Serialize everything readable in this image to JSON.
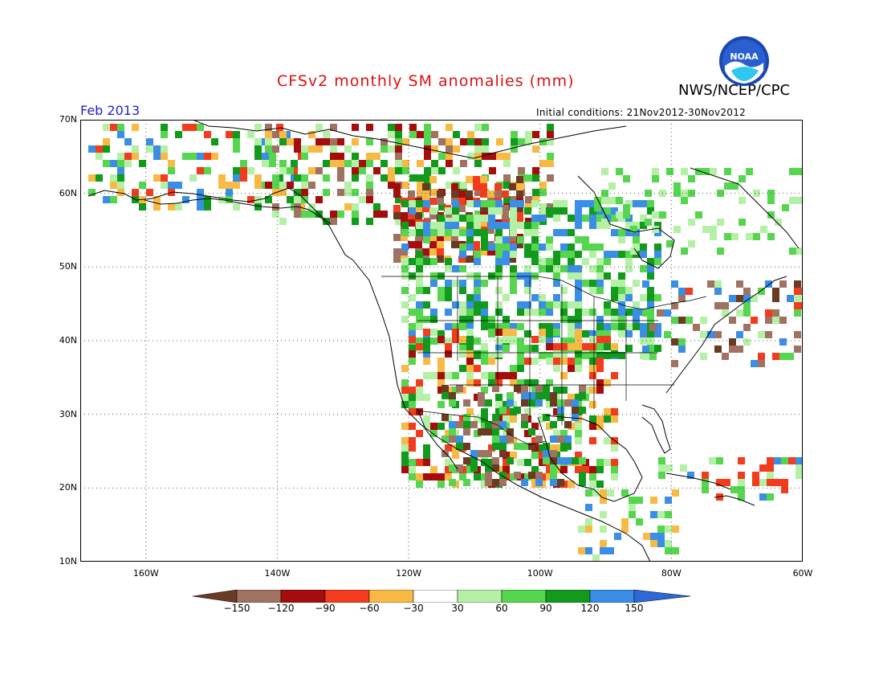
{
  "header": {
    "title": "CFSv2 monthly SM anomalies (mm)",
    "agency": "NWS/NCEP/CPC",
    "month": "Feb 2013",
    "initial_conditions": "Initial conditions: 21Nov2012-30Nov2012",
    "logo_text": "NOAA"
  },
  "map": {
    "lat_labels": [
      "70N",
      "60N",
      "50N",
      "40N",
      "30N",
      "20N",
      "10N"
    ],
    "lon_labels": [
      "160W",
      "140W",
      "120W",
      "100W",
      "80W",
      "60W"
    ],
    "lat_range": [
      10,
      70
    ],
    "lon_range": [
      -170,
      -60
    ]
  },
  "colorbar": {
    "labels": [
      "-150",
      "-120",
      "-90",
      "-60",
      "-30",
      "30",
      "60",
      "90",
      "120",
      "150"
    ],
    "colors": [
      "#6b3a22",
      "#a07262",
      "#a50d0d",
      "#f23c1d",
      "#f9ba45",
      "#ffffff",
      "#b4f0a6",
      "#56d64f",
      "#119a1c",
      "#3a8ee6",
      "#2c68d6"
    ]
  }
}
